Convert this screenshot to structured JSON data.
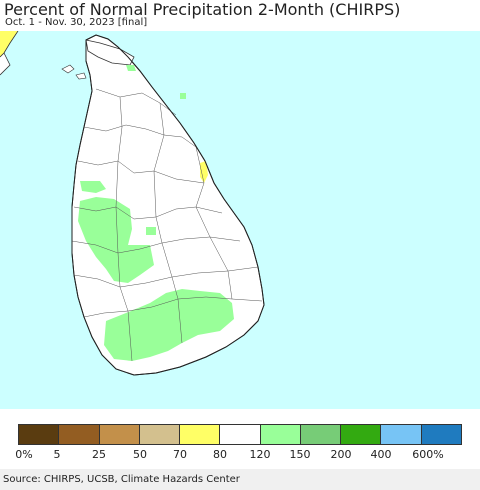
{
  "header": {
    "title": "Percent of Normal Precipitation 2-Month (CHIRPS)",
    "subtitle": "Oct. 1 - Nov. 30, 2023 [final]"
  },
  "map": {
    "region": "Sri Lanka",
    "ocean_color": "#ccffff",
    "land_color": "#ffffff",
    "highlight_colors": {
      "wetter_120_150": "#99ff99",
      "drier_70_80": "#ffff66"
    }
  },
  "legend": {
    "colors": [
      "#5a3c10",
      "#935d22",
      "#c3904a",
      "#d3c08e",
      "#ffff66",
      "#ffffff",
      "#99ff99",
      "#77cc77",
      "#33aa11",
      "#77c4f5",
      "#1f7bbf"
    ],
    "labels": [
      "0%",
      "5",
      "25",
      "50",
      "70",
      "80",
      "120",
      "150",
      "200",
      "400",
      "600%"
    ]
  },
  "footer": {
    "source": "Source: CHIRPS, UCSB, Climate Hazards Center"
  }
}
